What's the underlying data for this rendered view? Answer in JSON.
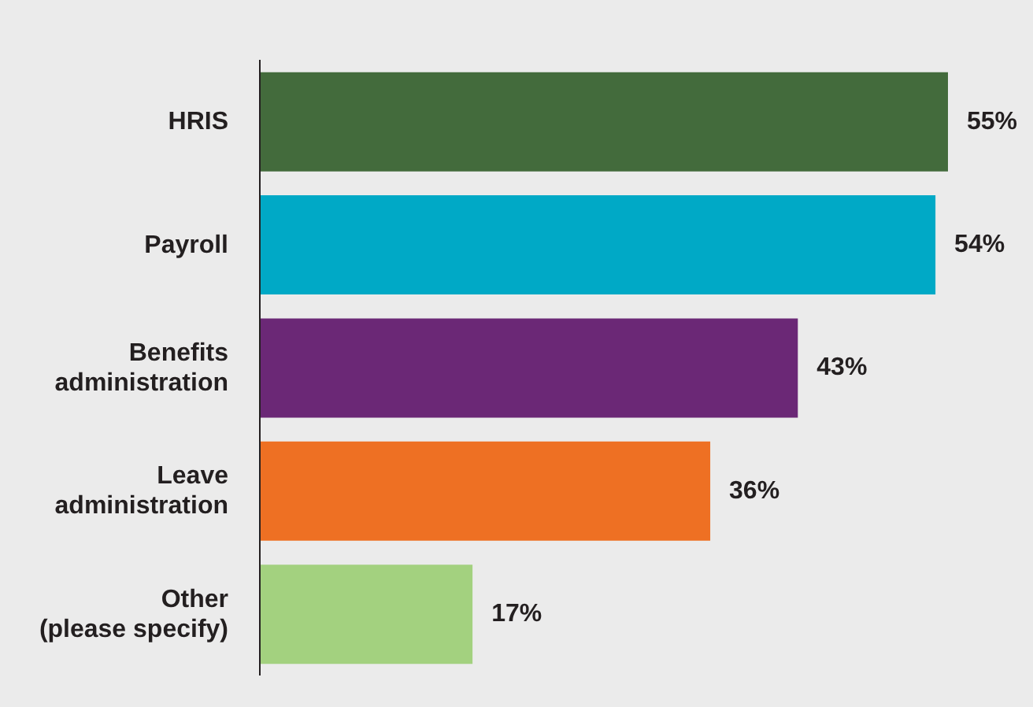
{
  "chart_data": {
    "type": "bar",
    "orientation": "horizontal",
    "categories": [
      "HRIS",
      "Payroll",
      "Benefits administration",
      "Leave administration",
      "Other (please specify)"
    ],
    "values": [
      55,
      54,
      43,
      36,
      17
    ],
    "value_labels": [
      "55%",
      "54%",
      "43%",
      "36%",
      "17%"
    ],
    "colors": [
      "#436b3c",
      "#00a9c6",
      "#6b2876",
      "#ee7023",
      "#a3d17f"
    ],
    "grid": false,
    "legend": false
  }
}
